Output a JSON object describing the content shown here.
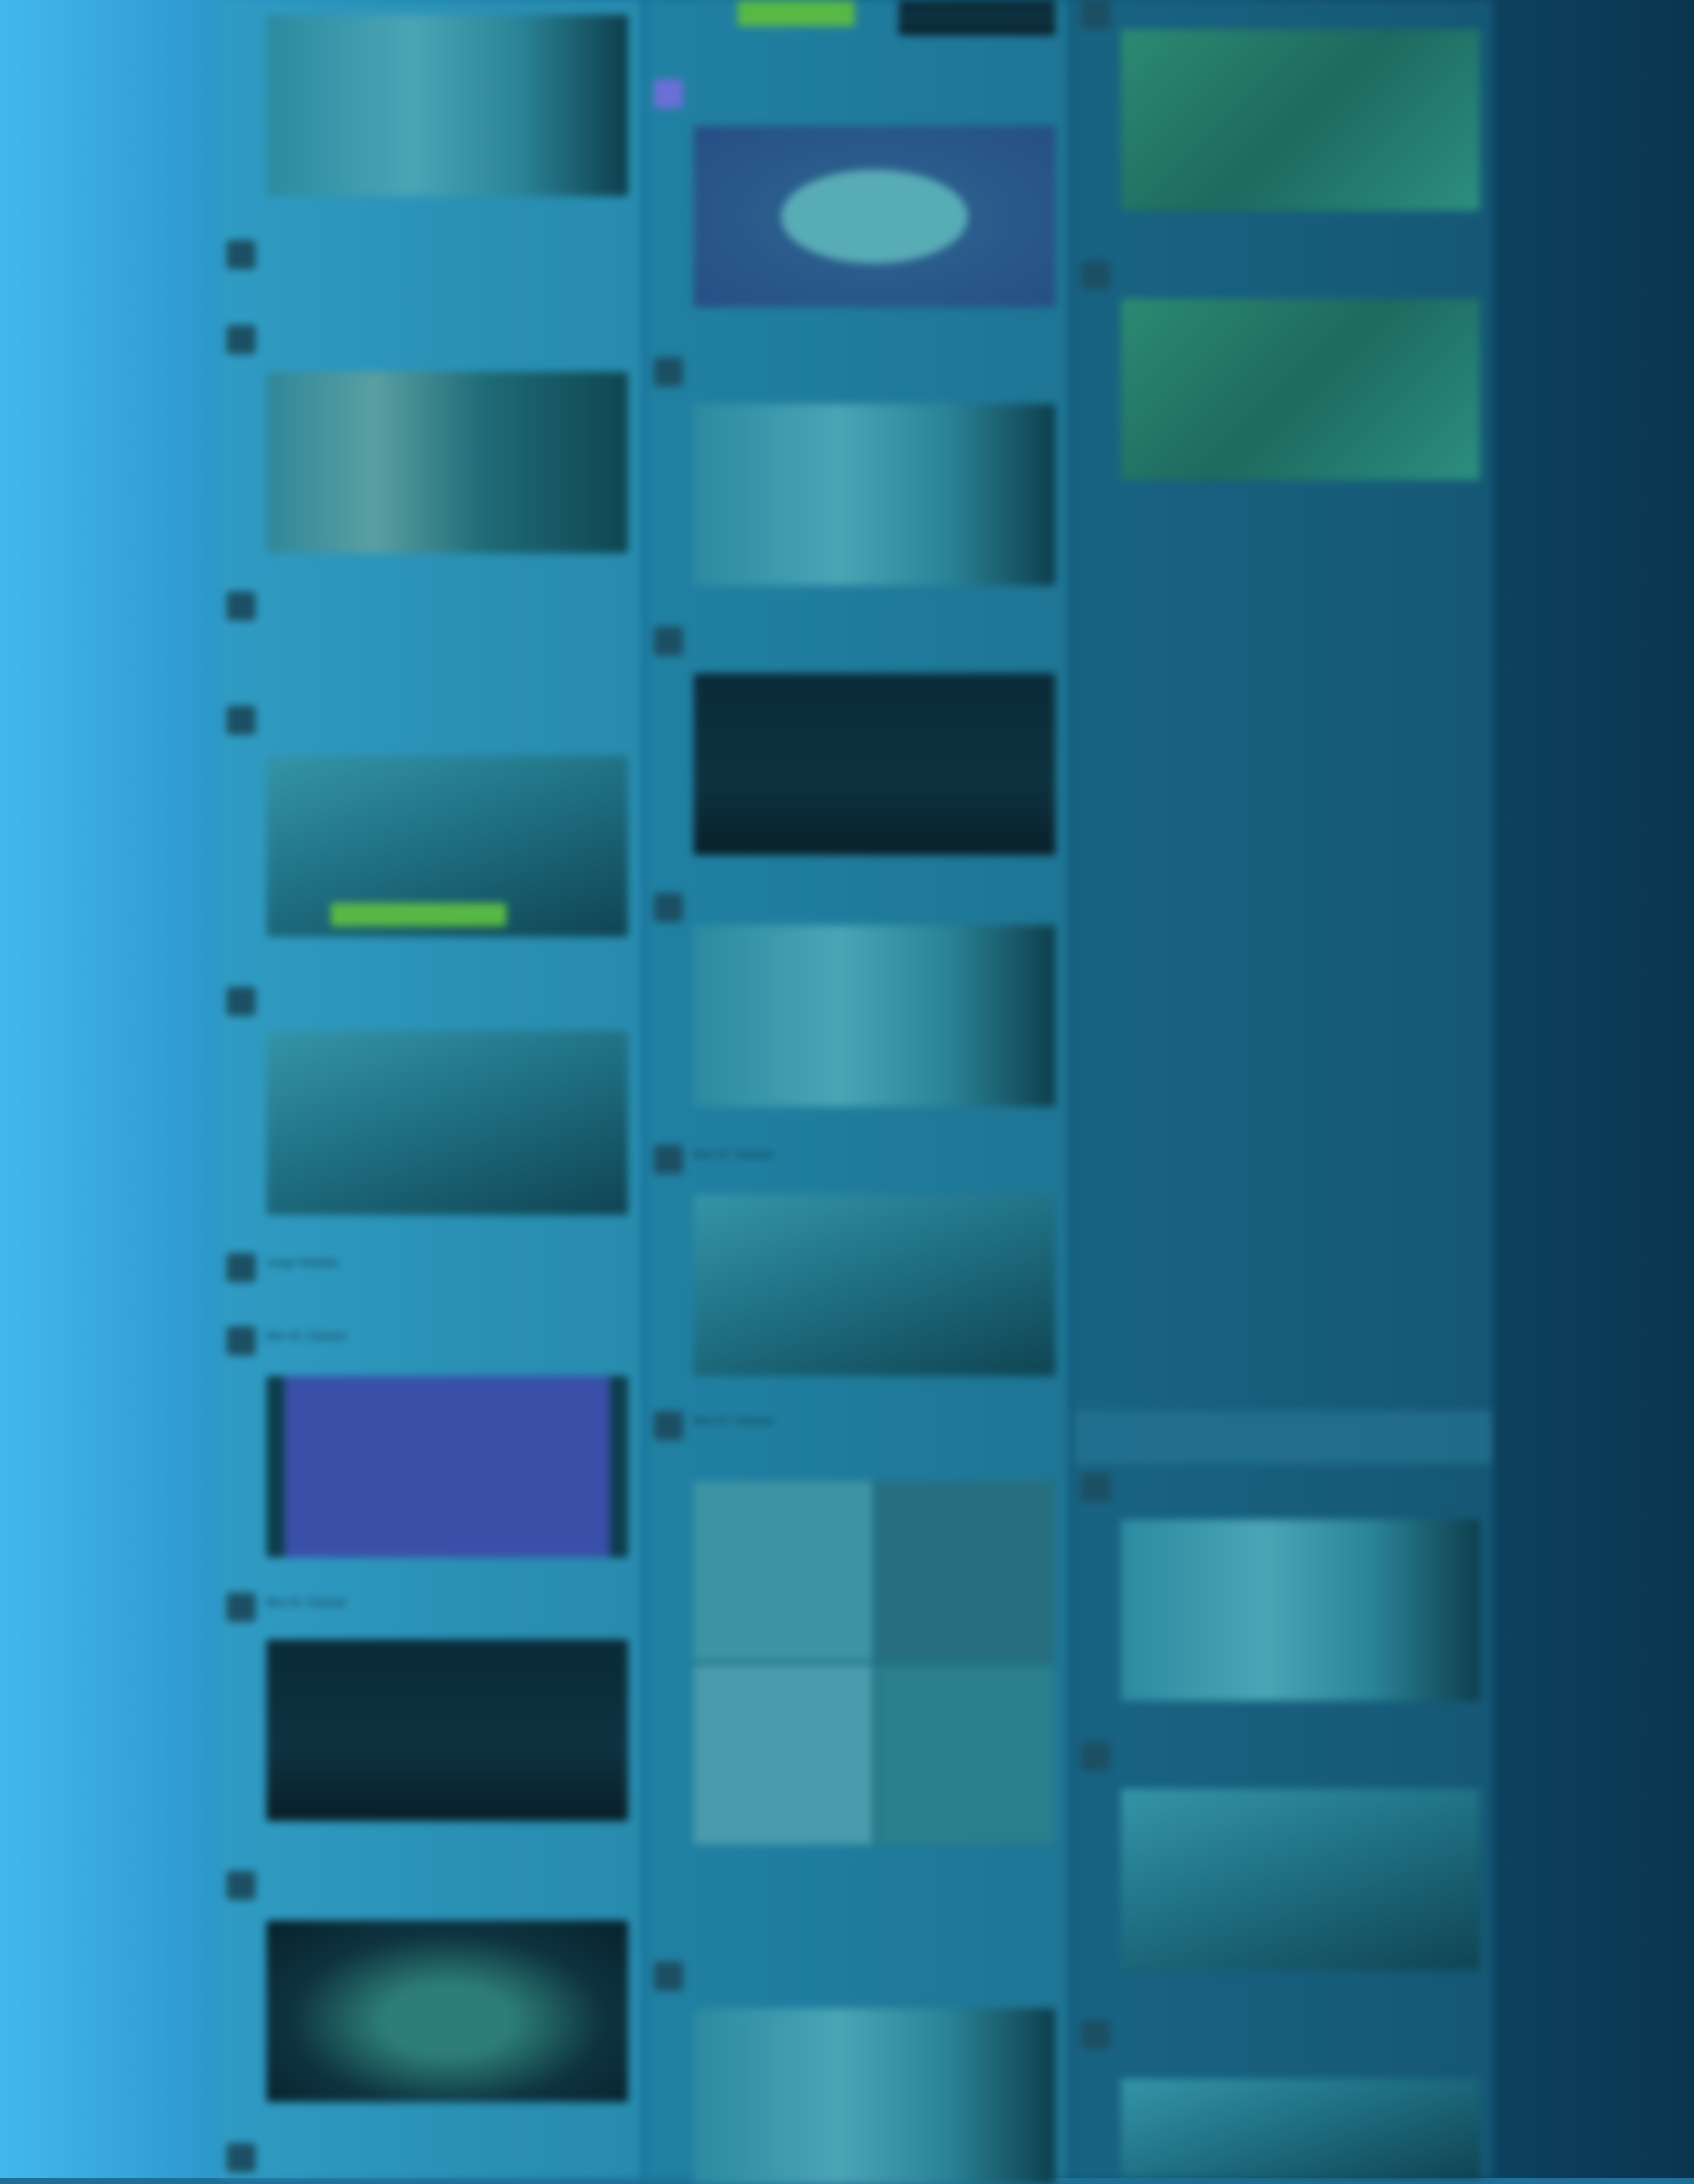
{
  "timeline": {
    "column_1": [
      {
        "user": "",
        "text": "",
        "media": "image"
      },
      {
        "user": "",
        "text": "",
        "media": "image"
      },
      {
        "user": "",
        "text": "",
        "media": "image"
      },
      {
        "user": "",
        "text": "",
        "media": "image"
      },
      {
        "user": "",
        "text": "",
        "media": "image"
      },
      {
        "user": "Jorge Redalla",
        "text": "",
        "media": "none"
      },
      {
        "user": "Ben M. Gaisser",
        "text": "",
        "media": "image"
      },
      {
        "user": "Ben M. Gaisser",
        "text": "",
        "media": "image"
      },
      {
        "user": "",
        "text": "",
        "media": "image"
      }
    ],
    "column_2": [
      {
        "user": "",
        "text": "",
        "media": "image"
      },
      {
        "user": "",
        "text": "",
        "media": "image"
      },
      {
        "user": "",
        "text": "",
        "media": "image"
      },
      {
        "user": "",
        "text": "",
        "media": "image"
      },
      {
        "user": "Ben M. Gaisser",
        "text": "",
        "media": "image"
      },
      {
        "user": "Ben M. Gaisser",
        "text": "",
        "media": "collage"
      },
      {
        "user": "",
        "text": "",
        "media": "image"
      }
    ],
    "column_3": [
      {
        "user": "",
        "text": "",
        "media": "image"
      },
      {
        "user": "",
        "text": "",
        "media": "image"
      },
      {
        "user": "",
        "text": "",
        "media": "image"
      },
      {
        "user": "",
        "text": "",
        "media": "image"
      },
      {
        "user": "",
        "text": "",
        "media": "image"
      }
    ]
  },
  "theme": {
    "gradient_left": "#43b8ee",
    "gradient_right": "#0a3550",
    "accent_green": "#58b846"
  }
}
